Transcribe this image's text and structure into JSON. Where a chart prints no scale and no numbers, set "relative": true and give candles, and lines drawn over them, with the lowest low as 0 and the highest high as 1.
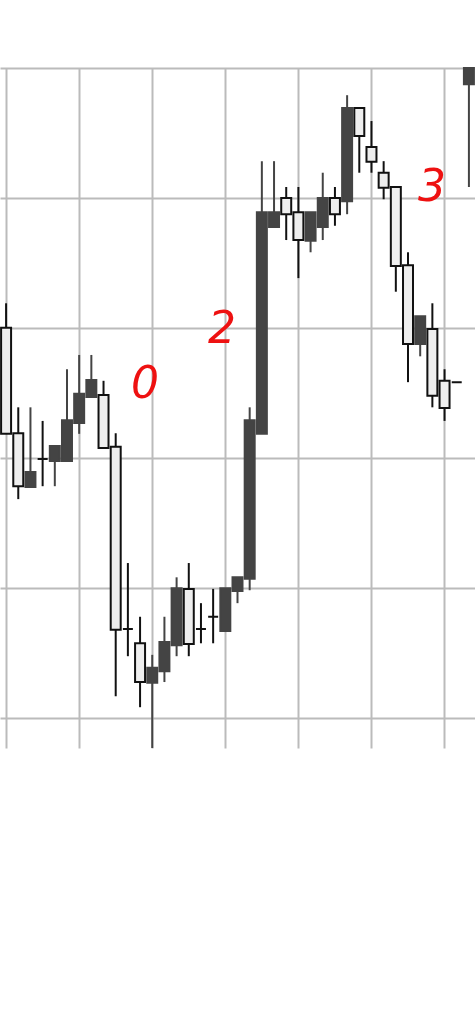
{
  "chart_data": {
    "type": "candlestick",
    "relative": true,
    "grid": true,
    "categories": [
      null,
      null,
      null,
      null,
      null,
      null,
      null,
      null,
      null,
      null,
      null,
      null,
      null,
      null,
      null,
      null,
      null,
      null,
      null,
      null,
      null,
      null,
      null,
      null,
      null,
      null,
      null,
      null,
      null,
      null,
      null,
      null,
      null,
      null,
      null,
      null,
      null,
      null,
      null
    ],
    "ohlc": [
      [
        0.618,
        0.654,
        0.462,
        0.462
      ],
      [
        0.463,
        0.501,
        0.366,
        0.385
      ],
      [
        0.384,
        0.501,
        0.384,
        0.406
      ],
      [
        0.425,
        0.481,
        0.385,
        0.425
      ],
      [
        0.422,
        0.444,
        0.385,
        0.444
      ],
      [
        0.422,
        0.557,
        0.422,
        0.482
      ],
      [
        0.478,
        0.578,
        0.462,
        0.521
      ],
      [
        0.516,
        0.578,
        0.516,
        0.541
      ],
      [
        0.519,
        0.54,
        0.441,
        0.441
      ],
      [
        0.443,
        0.463,
        0.076,
        0.174
      ],
      [
        0.175,
        0.272,
        0.135,
        0.175
      ],
      [
        0.154,
        0.193,
        0.06,
        0.097
      ],
      [
        0.096,
        0.137,
        0,
        0.118
      ],
      [
        0.113,
        0.193,
        0.097,
        0.156
      ],
      [
        0.151,
        0.251,
        0.135,
        0.235
      ],
      [
        0.234,
        0.272,
        0.135,
        0.153
      ],
      [
        0.175,
        0.213,
        0.154,
        0.175
      ],
      [
        0.193,
        0.234,
        0.154,
        0.193
      ],
      [
        0.172,
        0.235,
        0.172,
        0.235
      ],
      [
        0.231,
        0.251,
        0.213,
        0.251
      ],
      [
        0.249,
        0.501,
        0.232,
        0.482
      ],
      [
        0.462,
        0.863,
        0.462,
        0.788
      ],
      [
        0.766,
        0.863,
        0.766,
        0.788
      ],
      [
        0.809,
        0.825,
        0.747,
        0.785
      ],
      [
        0.788,
        0.825,
        0.691,
        0.747
      ],
      [
        0.746,
        0.788,
        0.729,
        0.788
      ],
      [
        0.766,
        0.846,
        0.747,
        0.809
      ],
      [
        0.809,
        0.825,
        0.768,
        0.785
      ],
      [
        0.804,
        0.96,
        0.785,
        0.941
      ],
      [
        0.941,
        0.941,
        0.846,
        0.9
      ],
      [
        0.884,
        0.922,
        0.846,
        0.862
      ],
      [
        0.846,
        0.863,
        0.807,
        0.824
      ],
      [
        0.825,
        0.825,
        0.671,
        0.709
      ],
      [
        0.71,
        0.729,
        0.538,
        0.594
      ],
      [
        0.594,
        0.635,
        0.576,
        0.635
      ],
      [
        0.616,
        0.654,
        0.501,
        0.518
      ],
      [
        0.54,
        0.557,
        0.481,
        0.5
      ],
      [
        0.538,
        0.538,
        0.538,
        0.538
      ],
      [
        0.976,
        1,
        0.825,
        1
      ]
    ],
    "annotations": [
      "0",
      "2",
      "3"
    ]
  }
}
